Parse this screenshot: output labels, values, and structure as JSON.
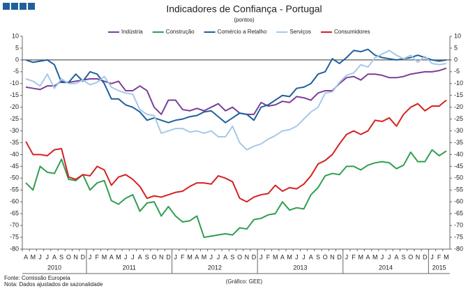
{
  "chart_data": {
    "type": "line",
    "title": "Indicadores de Confiança - Portugal",
    "subtitle": "(pontos)",
    "source": "Fonte: Comissão Europeia",
    "note": "Nota: Dados ajustados de sazonalidade",
    "credit": "(Gráfico: GEE)",
    "categories": [
      "A",
      "M",
      "J",
      "J",
      "A",
      "S",
      "O",
      "N",
      "D",
      "J",
      "F",
      "M",
      "A",
      "M",
      "J",
      "J",
      "A",
      "S",
      "O",
      "N",
      "D",
      "J",
      "F",
      "M",
      "A",
      "M",
      "J",
      "J",
      "A",
      "S",
      "O",
      "N",
      "D",
      "J",
      "F",
      "M",
      "A",
      "M",
      "J",
      "J",
      "A",
      "S",
      "O",
      "N",
      "D",
      "J",
      "F",
      "M",
      "A",
      "M",
      "J",
      "J",
      "A",
      "S",
      "O",
      "N",
      "D",
      "J",
      "F",
      "M"
    ],
    "x_groups": [
      {
        "label": "2010",
        "span": 9
      },
      {
        "label": "2011",
        "span": 12
      },
      {
        "label": "2012",
        "span": 12
      },
      {
        "label": "2013",
        "span": 12
      },
      {
        "label": "2014",
        "span": 12
      },
      {
        "label": "2015",
        "span": 3
      }
    ],
    "ylim": [
      -80,
      10
    ],
    "yticks": [
      -80,
      -75,
      -70,
      -65,
      -60,
      -55,
      -50,
      -45,
      -40,
      -35,
      -30,
      -25,
      -20,
      -15,
      -10,
      -5,
      0,
      5,
      10
    ],
    "right_axis_mirror": true,
    "grid": false,
    "legend": "top",
    "series": [
      {
        "name": "Indústria",
        "color": "#7b3f98",
        "values": [
          -11.5,
          -12,
          -12.5,
          -11,
          -11,
          -9,
          -9.5,
          -9,
          -8.5,
          -8,
          -8,
          -9,
          -10,
          -9,
          -13,
          -13,
          -11,
          -13,
          -20,
          -23,
          -17,
          -17,
          -21,
          -21.5,
          -20.5,
          -21.5,
          -20,
          -18.5,
          -21.5,
          -20,
          -22.5,
          -23,
          -23,
          -18,
          -19.5,
          -19,
          -17.5,
          -18,
          -15.5,
          -16,
          -17,
          -14,
          -13,
          -13,
          -10,
          -7.5,
          -7,
          -8.5,
          -6,
          -6,
          -6.5,
          -7.5,
          -7.5,
          -7,
          -6,
          -5.5,
          -5,
          -5,
          -4.5,
          -3.5
        ]
      },
      {
        "name": "Construção",
        "color": "#2e9e4f",
        "values": [
          -52,
          -55,
          -45,
          -47.5,
          -48,
          -42,
          -50.5,
          -51,
          -48.5,
          -55,
          -52,
          -51,
          -59.5,
          -61,
          -58.5,
          -57,
          -64,
          -60.5,
          -60,
          -66,
          -62,
          -66,
          -68.5,
          -68,
          -66,
          -75,
          -74.5,
          -74,
          -73.5,
          -74,
          -71,
          -71.5,
          -67.5,
          -67,
          -65.5,
          -65,
          -60,
          -63.5,
          -62.5,
          -63,
          -57,
          -54,
          -49,
          -48,
          -48.5,
          -45,
          -45,
          -46.5,
          -44.5,
          -43.5,
          -43,
          -43.5,
          -46,
          -44.5,
          -39,
          -43,
          -43,
          -38,
          -40.5,
          -38.5
        ]
      },
      {
        "name": "Comércio a Retalho",
        "color": "#1f5f9c",
        "values": [
          0,
          -1,
          -0.5,
          0,
          -2,
          -9.5,
          -9.5,
          -6,
          -9,
          -5,
          -6,
          -10,
          -16.5,
          -16.5,
          -19,
          -20,
          -22,
          -25.5,
          -24.5,
          -25.5,
          -26.5,
          -25.5,
          -25,
          -24,
          -23.5,
          -22,
          -21.5,
          -24,
          -26.5,
          -24.5,
          -22.5,
          -23,
          -25.5,
          -20,
          -19,
          -17,
          -15,
          -15.5,
          -12,
          -11.5,
          -10,
          -6,
          -5,
          0.5,
          -1.5,
          1,
          4,
          3.5,
          4.5,
          2,
          1,
          0.5,
          0,
          0.5,
          1,
          2,
          1,
          0,
          -0.5,
          0
        ]
      },
      {
        "name": "Serviços",
        "color": "#a6c8e8",
        "values": [
          -8,
          -9,
          -11,
          -6,
          -12,
          -8,
          -10,
          -10,
          -8.5,
          -10.5,
          -9.5,
          -7,
          -11.5,
          -13,
          -14,
          -14.5,
          -21,
          -23,
          -23.5,
          -31,
          -30,
          -29,
          -29,
          -30.5,
          -30,
          -31,
          -30,
          -32.5,
          -32.5,
          -28,
          -35,
          -38,
          -36.5,
          -35.5,
          -33.5,
          -32,
          -30,
          -29.5,
          -28,
          -25,
          -22,
          -20,
          -14,
          -13.5,
          -9.5,
          -6.5,
          -5.5,
          -2,
          -3,
          1,
          2.5,
          4,
          2,
          0.5,
          2,
          -1,
          1.5,
          -1.5,
          -2,
          -1.5
        ]
      },
      {
        "name": "Consumidores",
        "color": "#d62020",
        "values": [
          -34.5,
          -40,
          -40,
          -40.5,
          -38,
          -37.5,
          -49.5,
          -50.5,
          -48.5,
          -49,
          -45,
          -46.5,
          -53,
          -49.5,
          -48.5,
          -50.5,
          -53.5,
          -58.5,
          -57.5,
          -58,
          -57,
          -56,
          -55.5,
          -53.5,
          -52,
          -52,
          -52.5,
          -49,
          -50,
          -51.5,
          -58.5,
          -60,
          -58,
          -57,
          -56.5,
          -53,
          -55.5,
          -54,
          -54.5,
          -52.5,
          -49,
          -44,
          -42.5,
          -40,
          -35.5,
          -31.5,
          -30,
          -31.5,
          -30,
          -25.5,
          -26,
          -24.5,
          -28,
          -23,
          -20,
          -18.5,
          -21.5,
          -19.5,
          -19.5,
          -17
        ]
      }
    ]
  }
}
